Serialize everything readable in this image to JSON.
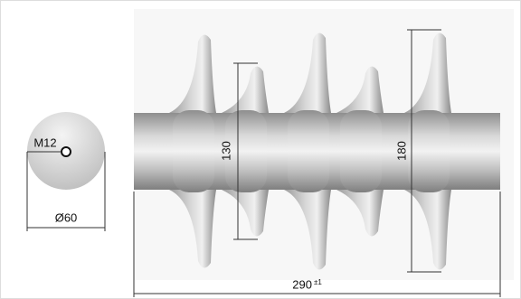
{
  "labels": {
    "thread": "M12",
    "diameter": "Ø60",
    "small_shed_span": "130",
    "large_shed_span": "180",
    "length": "290",
    "tolerance": "±1"
  }
}
